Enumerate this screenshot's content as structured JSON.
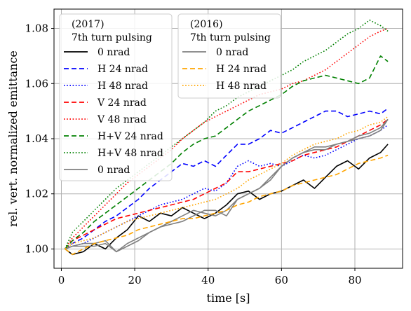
{
  "chart_data": {
    "type": "line",
    "title": "",
    "xlabel": "time [s]",
    "ylabel": "rel. vert. normalized emittance",
    "xlim": [
      -2,
      93
    ],
    "ylim": [
      0.993,
      1.087
    ],
    "xticks": [
      0,
      20,
      40,
      60,
      80
    ],
    "yticks": [
      1.0,
      1.02,
      1.04,
      1.06,
      1.08
    ],
    "xtick_labels": [
      "0",
      "20",
      "40",
      "60",
      "80"
    ],
    "ytick_labels": [
      "1.00",
      "1.02",
      "1.04",
      "1.06",
      "1.08"
    ],
    "grid": true,
    "legends": [
      {
        "title_line1": "(2017)",
        "title_line2": "7th turn pulsing",
        "placement": "top-left",
        "entries": [
          "0 nrad",
          "H 24 nrad",
          "H 48 nrad",
          "V 24 nrad",
          "V 48 nrad",
          "H+V 24 nrad",
          "H+V 48 nrad",
          "0 nrad"
        ]
      },
      {
        "title_line1": "(2016)",
        "title_line2": "7th turn pulsing",
        "placement": "top-center",
        "entries": [
          "0 nrad",
          "H 24 nrad",
          "H 48 nrad"
        ]
      }
    ],
    "series": [
      {
        "name": "0 nrad",
        "legend": 0,
        "color": "#000000",
        "dash": "solid",
        "x": [
          1,
          3,
          6,
          9,
          12,
          15,
          18,
          21,
          24,
          27,
          30,
          33,
          36,
          39,
          42,
          45,
          48,
          51,
          54,
          57,
          60,
          63,
          66,
          69,
          72,
          75,
          78,
          81,
          84,
          87,
          89
        ],
        "y": [
          1.0,
          0.998,
          0.999,
          1.002,
          1.0,
          1.004,
          1.007,
          1.012,
          1.01,
          1.013,
          1.012,
          1.015,
          1.013,
          1.011,
          1.013,
          1.016,
          1.02,
          1.021,
          1.018,
          1.02,
          1.021,
          1.023,
          1.025,
          1.022,
          1.026,
          1.03,
          1.032,
          1.029,
          1.033,
          1.035,
          1.038
        ]
      },
      {
        "name": "H 24 nrad",
        "legend": 0,
        "color": "#0000ff",
        "dash": "dashed",
        "x": [
          1,
          3,
          6,
          9,
          12,
          15,
          18,
          21,
          24,
          27,
          30,
          33,
          36,
          39,
          42,
          45,
          48,
          51,
          54,
          57,
          60,
          63,
          66,
          69,
          72,
          75,
          78,
          81,
          84,
          87,
          89
        ],
        "y": [
          1.0,
          1.002,
          1.004,
          1.007,
          1.01,
          1.012,
          1.015,
          1.018,
          1.022,
          1.025,
          1.028,
          1.031,
          1.03,
          1.032,
          1.03,
          1.034,
          1.038,
          1.038,
          1.04,
          1.043,
          1.042,
          1.044,
          1.046,
          1.048,
          1.05,
          1.05,
          1.048,
          1.049,
          1.05,
          1.049,
          1.051
        ]
      },
      {
        "name": "H 48 nrad",
        "legend": 0,
        "color": "#0000ff",
        "dash": "dotted",
        "x": [
          1,
          3,
          6,
          9,
          12,
          15,
          18,
          21,
          24,
          27,
          30,
          33,
          36,
          39,
          42,
          45,
          48,
          51,
          54,
          57,
          60,
          63,
          66,
          69,
          72,
          75,
          78,
          81,
          84,
          87,
          89
        ],
        "y": [
          1.0,
          1.001,
          1.002,
          1.004,
          1.006,
          1.008,
          1.01,
          1.012,
          1.014,
          1.016,
          1.017,
          1.018,
          1.02,
          1.022,
          1.021,
          1.024,
          1.03,
          1.032,
          1.03,
          1.031,
          1.03,
          1.032,
          1.034,
          1.033,
          1.034,
          1.036,
          1.038,
          1.04,
          1.041,
          1.043,
          1.045
        ]
      },
      {
        "name": "V 24 nrad",
        "legend": 0,
        "color": "#ff0000",
        "dash": "dashed",
        "x": [
          1,
          3,
          6,
          9,
          12,
          15,
          18,
          21,
          24,
          27,
          30,
          33,
          36,
          39,
          42,
          45,
          48,
          51,
          54,
          57,
          60,
          63,
          66,
          69,
          72,
          75,
          78,
          81,
          84,
          87,
          89
        ],
        "y": [
          1.0,
          1.003,
          1.005,
          1.007,
          1.009,
          1.011,
          1.012,
          1.013,
          1.014,
          1.015,
          1.016,
          1.017,
          1.018,
          1.02,
          1.022,
          1.024,
          1.028,
          1.028,
          1.029,
          1.03,
          1.031,
          1.032,
          1.034,
          1.035,
          1.036,
          1.037,
          1.039,
          1.041,
          1.043,
          1.045,
          1.047
        ]
      },
      {
        "name": "V 48 nrad",
        "legend": 0,
        "color": "#ff0000",
        "dash": "dotted",
        "x": [
          1,
          3,
          6,
          9,
          12,
          15,
          18,
          21,
          24,
          27,
          30,
          33,
          36,
          39,
          42,
          45,
          48,
          51,
          54,
          57,
          60,
          63,
          66,
          69,
          72,
          75,
          78,
          81,
          84,
          87,
          89
        ],
        "y": [
          1.0,
          1.004,
          1.008,
          1.012,
          1.016,
          1.02,
          1.024,
          1.027,
          1.03,
          1.033,
          1.036,
          1.04,
          1.043,
          1.046,
          1.048,
          1.05,
          1.052,
          1.054,
          1.056,
          1.057,
          1.058,
          1.06,
          1.061,
          1.063,
          1.065,
          1.068,
          1.071,
          1.074,
          1.077,
          1.079,
          1.08
        ]
      },
      {
        "name": "H+V 24 nrad",
        "legend": 0,
        "color": "#008000",
        "dash": "dashed",
        "x": [
          1,
          3,
          6,
          9,
          12,
          15,
          18,
          21,
          24,
          27,
          30,
          33,
          36,
          39,
          42,
          45,
          48,
          51,
          54,
          57,
          60,
          63,
          66,
          69,
          72,
          75,
          78,
          81,
          84,
          87,
          89
        ],
        "y": [
          1.0,
          1.003,
          1.006,
          1.01,
          1.013,
          1.016,
          1.019,
          1.022,
          1.025,
          1.028,
          1.031,
          1.035,
          1.038,
          1.04,
          1.041,
          1.044,
          1.047,
          1.05,
          1.052,
          1.054,
          1.056,
          1.059,
          1.061,
          1.062,
          1.063,
          1.062,
          1.061,
          1.06,
          1.062,
          1.07,
          1.068
        ]
      },
      {
        "name": "H+V 48 nrad",
        "legend": 0,
        "color": "#008000",
        "dash": "dotted",
        "x": [
          1,
          3,
          6,
          9,
          12,
          15,
          18,
          21,
          24,
          27,
          30,
          33,
          36,
          39,
          42,
          45,
          48,
          51,
          54,
          57,
          60,
          63,
          66,
          69,
          72,
          75,
          78,
          81,
          84,
          87,
          89
        ],
        "y": [
          1.0,
          1.006,
          1.01,
          1.014,
          1.018,
          1.022,
          1.025,
          1.028,
          1.031,
          1.034,
          1.037,
          1.04,
          1.043,
          1.046,
          1.05,
          1.052,
          1.055,
          1.057,
          1.059,
          1.061,
          1.063,
          1.065,
          1.068,
          1.07,
          1.072,
          1.075,
          1.078,
          1.08,
          1.083,
          1.081,
          1.079
        ]
      },
      {
        "name": "0 nrad",
        "legend": 0,
        "color": "#808080",
        "dash": "solid",
        "x": [
          1,
          3,
          6,
          9,
          12,
          15,
          18,
          21,
          24,
          27,
          30,
          33,
          36,
          39,
          42,
          45,
          48,
          51,
          54,
          57,
          60,
          63,
          66,
          69,
          72,
          75,
          78,
          81,
          84,
          87,
          89
        ],
        "y": [
          1.0,
          1.001,
          1.001,
          1.001,
          1.002,
          0.999,
          1.002,
          1.004,
          1.006,
          1.008,
          1.009,
          1.01,
          1.012,
          1.014,
          1.014,
          1.012,
          1.018,
          1.02,
          1.022,
          1.026,
          1.03,
          1.033,
          1.035,
          1.036,
          1.036,
          1.038,
          1.039,
          1.04,
          1.041,
          1.043,
          1.047
        ]
      },
      {
        "name": "0 nrad",
        "legend": 1,
        "color": "#808080",
        "dash": "solid",
        "x": [
          1,
          3,
          6,
          9,
          12,
          15,
          18,
          21,
          24,
          27,
          30,
          33,
          36,
          39,
          42,
          45,
          48,
          51,
          54,
          57,
          60,
          63,
          66,
          69,
          72,
          75,
          78,
          81,
          84,
          87,
          89
        ],
        "y": [
          1.0,
          1.001,
          1.002,
          1.002,
          1.003,
          0.999,
          1.001,
          1.003,
          1.006,
          1.008,
          1.01,
          1.012,
          1.014,
          1.013,
          1.012,
          1.014,
          1.018,
          1.02,
          1.022,
          1.025,
          1.03,
          1.033,
          1.035,
          1.037,
          1.037,
          1.038,
          1.039,
          1.041,
          1.042,
          1.044,
          1.047
        ]
      },
      {
        "name": "H 24 nrad",
        "legend": 1,
        "color": "#ffa500",
        "dash": "dashed",
        "x": [
          1,
          3,
          6,
          9,
          12,
          15,
          18,
          21,
          24,
          27,
          30,
          33,
          36,
          39,
          42,
          45,
          48,
          51,
          54,
          57,
          60,
          63,
          66,
          69,
          72,
          75,
          78,
          81,
          84,
          87,
          89
        ],
        "y": [
          1.0,
          0.998,
          1.0,
          1.002,
          1.003,
          1.004,
          1.005,
          1.007,
          1.008,
          1.009,
          1.01,
          1.011,
          1.011,
          1.012,
          1.013,
          1.014,
          1.016,
          1.017,
          1.019,
          1.02,
          1.021,
          1.023,
          1.024,
          1.025,
          1.026,
          1.027,
          1.029,
          1.031,
          1.032,
          1.033,
          1.034
        ]
      },
      {
        "name": "H 48 nrad",
        "legend": 1,
        "color": "#ffa500",
        "dash": "dotted",
        "x": [
          1,
          3,
          6,
          9,
          12,
          15,
          18,
          21,
          24,
          27,
          30,
          33,
          36,
          39,
          42,
          45,
          48,
          51,
          54,
          57,
          60,
          63,
          66,
          69,
          72,
          75,
          78,
          81,
          84,
          87,
          89
        ],
        "y": [
          1.0,
          1.002,
          1.003,
          1.004,
          1.006,
          1.008,
          1.01,
          1.011,
          1.012,
          1.013,
          1.014,
          1.015,
          1.016,
          1.017,
          1.018,
          1.02,
          1.022,
          1.025,
          1.027,
          1.029,
          1.031,
          1.034,
          1.036,
          1.038,
          1.039,
          1.04,
          1.042,
          1.043,
          1.045,
          1.046,
          1.048
        ]
      }
    ]
  }
}
